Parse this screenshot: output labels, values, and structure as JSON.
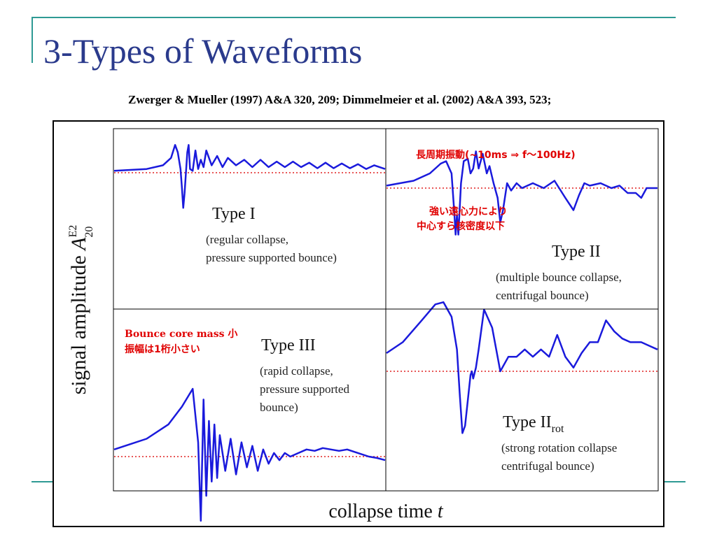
{
  "slide": {
    "title": "3-Types of Waveforms",
    "citation": "Zwerger & Mueller (1997) A&A 320, 209;   Dimmelmeier et al. (2002) A&A 393, 523;"
  },
  "colors": {
    "title": "#2a3a8c",
    "waveform": "#1a1adc",
    "baseline": "#e02020",
    "annotation": "#e00000",
    "accent_line": "#2e9a94"
  },
  "chart_data": {
    "type": "line",
    "xlabel_main": "collapse time ",
    "xlabel_var": "t",
    "ylabel_main": "signal amplitude ",
    "ylabel_var": "A",
    "ylabel_sup": "E2",
    "ylabel_sub": "20",
    "grid": false,
    "panels": [
      {
        "id": "type-1",
        "position": "top-left",
        "label": "Type I",
        "label_sub": "",
        "desc_lines": [
          "(regular collapse,",
          " pressure supported bounce)"
        ],
        "baseline": 0,
        "ylim": [
          -1,
          1
        ],
        "series": [
          {
            "x": [
              0,
              0.12,
              0.18,
              0.21,
              0.225,
              0.235,
              0.245,
              0.25,
              0.255,
              0.26,
              0.27,
              0.275,
              0.28,
              0.29,
              0.3,
              0.31,
              0.32,
              0.33,
              0.34,
              0.36,
              0.38,
              0.4,
              0.42,
              0.45,
              0.48,
              0.51,
              0.54,
              0.57,
              0.6,
              0.63,
              0.66,
              0.69,
              0.72,
              0.75,
              0.78,
              0.81,
              0.84,
              0.87,
              0.9,
              0.93,
              0.96,
              1.0
            ],
            "y": [
              0.05,
              0.1,
              0.2,
              0.4,
              0.75,
              0.55,
              0.1,
              -0.4,
              -0.95,
              -0.55,
              0.55,
              0.75,
              0.1,
              0.05,
              0.6,
              0.1,
              0.35,
              0.15,
              0.6,
              0.2,
              0.45,
              0.15,
              0.4,
              0.2,
              0.35,
              0.15,
              0.35,
              0.15,
              0.3,
              0.15,
              0.3,
              0.15,
              0.27,
              0.12,
              0.27,
              0.12,
              0.25,
              0.12,
              0.23,
              0.1,
              0.2,
              0.1
            ]
          }
        ]
      },
      {
        "id": "type-2",
        "position": "top-right",
        "label": "Type II",
        "label_sub": "",
        "desc_lines": [
          "(multiple bounce collapse,",
          " centrifugal bounce)"
        ],
        "baseline": 0,
        "ylim": [
          -1,
          1
        ],
        "series": [
          {
            "x": [
              0,
              0.1,
              0.16,
              0.2,
              0.22,
              0.24,
              0.25,
              0.255,
              0.26,
              0.265,
              0.275,
              0.285,
              0.3,
              0.31,
              0.32,
              0.33,
              0.34,
              0.355,
              0.37,
              0.38,
              0.395,
              0.41,
              0.42,
              0.43,
              0.445,
              0.46,
              0.48,
              0.5,
              0.54,
              0.58,
              0.62,
              0.66,
              0.69,
              0.71,
              0.73,
              0.75,
              0.79,
              0.83,
              0.86,
              0.89,
              0.92,
              0.94,
              0.96,
              1.0
            ],
            "y": [
              0.05,
              0.15,
              0.3,
              0.5,
              0.55,
              0.3,
              -0.5,
              -0.95,
              -0.55,
              -0.95,
              0.1,
              0.55,
              0.6,
              0.3,
              0.4,
              0.75,
              0.4,
              0.7,
              0.3,
              0.45,
              0.1,
              -0.2,
              -0.7,
              -0.45,
              0.1,
              -0.05,
              0.1,
              0.0,
              0.1,
              0.0,
              0.15,
              -0.2,
              -0.45,
              -0.15,
              0.1,
              0.05,
              0.1,
              0.0,
              0.05,
              -0.1,
              -0.1,
              -0.2,
              0.0,
              0.0
            ]
          }
        ]
      },
      {
        "id": "type-3",
        "position": "bottom-left",
        "label": "Type III",
        "label_sub": "",
        "desc_lines": [
          "(rapid collapse,",
          " pressure supported",
          " bounce)"
        ],
        "baseline": 0,
        "ylim": [
          -1,
          1
        ],
        "series": [
          {
            "x": [
              0,
              0.12,
              0.2,
              0.25,
              0.29,
              0.31,
              0.32,
              0.33,
              0.34,
              0.35,
              0.36,
              0.37,
              0.38,
              0.39,
              0.41,
              0.43,
              0.45,
              0.47,
              0.49,
              0.51,
              0.53,
              0.55,
              0.57,
              0.59,
              0.61,
              0.63,
              0.65,
              0.68,
              0.71,
              0.74,
              0.77,
              0.8,
              0.83,
              0.86,
              0.9,
              0.94,
              0.97,
              1.0
            ],
            "y": [
              0.1,
              0.25,
              0.45,
              0.7,
              0.95,
              0.2,
              -0.9,
              0.8,
              -0.55,
              0.5,
              -0.35,
              0.45,
              -0.3,
              0.3,
              -0.2,
              0.25,
              -0.25,
              0.2,
              -0.15,
              0.15,
              -0.2,
              0.1,
              -0.1,
              0.05,
              -0.05,
              0.05,
              0.0,
              0.05,
              0.1,
              0.08,
              0.12,
              0.1,
              0.08,
              0.1,
              0.05,
              0.0,
              -0.02,
              -0.05
            ]
          }
        ]
      },
      {
        "id": "type-2-rot",
        "position": "bottom-right",
        "label": "Type II",
        "label_sub": "rot",
        "desc_lines": [
          "(strong rotation collapse",
          " centrifugal bounce)"
        ],
        "baseline": 0,
        "ylim": [
          -1,
          1
        ],
        "series": [
          {
            "x": [
              0,
              0.06,
              0.13,
              0.18,
              0.21,
              0.24,
              0.26,
              0.27,
              0.28,
              0.29,
              0.3,
              0.31,
              0.315,
              0.32,
              0.33,
              0.34,
              0.36,
              0.39,
              0.42,
              0.45,
              0.48,
              0.51,
              0.54,
              0.57,
              0.6,
              0.63,
              0.66,
              0.69,
              0.72,
              0.75,
              0.78,
              0.81,
              0.84,
              0.87,
              0.9,
              0.94,
              0.97,
              1.0
            ],
            "y": [
              0.25,
              0.4,
              0.7,
              0.92,
              0.95,
              0.75,
              0.3,
              -0.3,
              -0.85,
              -0.75,
              -0.4,
              -0.05,
              0.0,
              -0.1,
              0.05,
              0.3,
              0.85,
              0.6,
              0.0,
              0.2,
              0.2,
              0.3,
              0.2,
              0.3,
              0.2,
              0.5,
              0.2,
              0.05,
              0.25,
              0.4,
              0.4,
              0.7,
              0.55,
              0.45,
              0.4,
              0.4,
              0.35,
              0.3
            ]
          }
        ]
      }
    ]
  },
  "annotations": {
    "type2_period": "長周期振動(~10ms ⇒ f～100Hz)",
    "type2_centrifugal_line1": "強い遠心力により",
    "type2_centrifugal_line2": "中心すら核密度以下",
    "type3_line1": "Bounce core mass 小",
    "type3_line2": "振幅は1桁小さい"
  }
}
